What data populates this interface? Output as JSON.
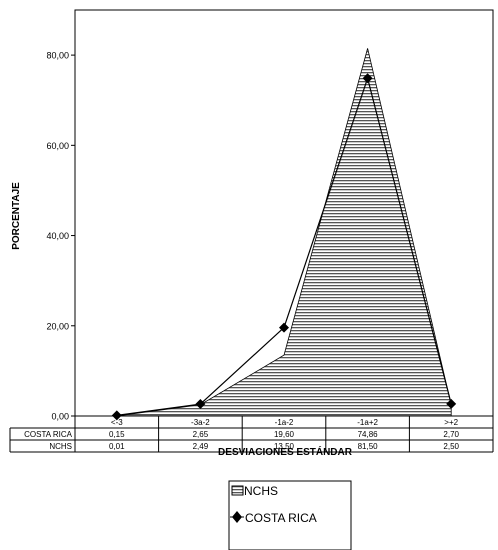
{
  "chart_data": {
    "type": "area",
    "categories": [
      "<-3",
      "-3a-2",
      "-1a-2",
      "-1a+2",
      ">+2"
    ],
    "ylabel": "PORCENTAJE",
    "xlabel": "DESVIACIONES ESTÁNDAR",
    "ylim": [
      0,
      90
    ],
    "yticks": [
      "0,00",
      "20,00",
      "40,00",
      "60,00",
      "80,00"
    ],
    "ytick_values": [
      0,
      20,
      40,
      60,
      80
    ],
    "series": [
      {
        "name": "NCHS",
        "style": "area-hatched",
        "values": [
          0.01,
          2.49,
          13.5,
          81.5,
          2.5
        ],
        "labels": [
          "0,01",
          "2,49",
          "13,50",
          "81,50",
          "2,50"
        ]
      },
      {
        "name": "COSTA RICA",
        "style": "line-diamond",
        "values": [
          0.15,
          2.65,
          19.6,
          74.86,
          2.7
        ],
        "labels": [
          "0,15",
          "2,65",
          "19,60",
          "74,86",
          "2,70"
        ]
      }
    ],
    "table_rows": [
      "COSTA RICA",
      "NCHS"
    ],
    "legend": {
      "position": "bottom",
      "entries": [
        "NCHS",
        "COSTA RICA"
      ]
    },
    "grid": false
  }
}
